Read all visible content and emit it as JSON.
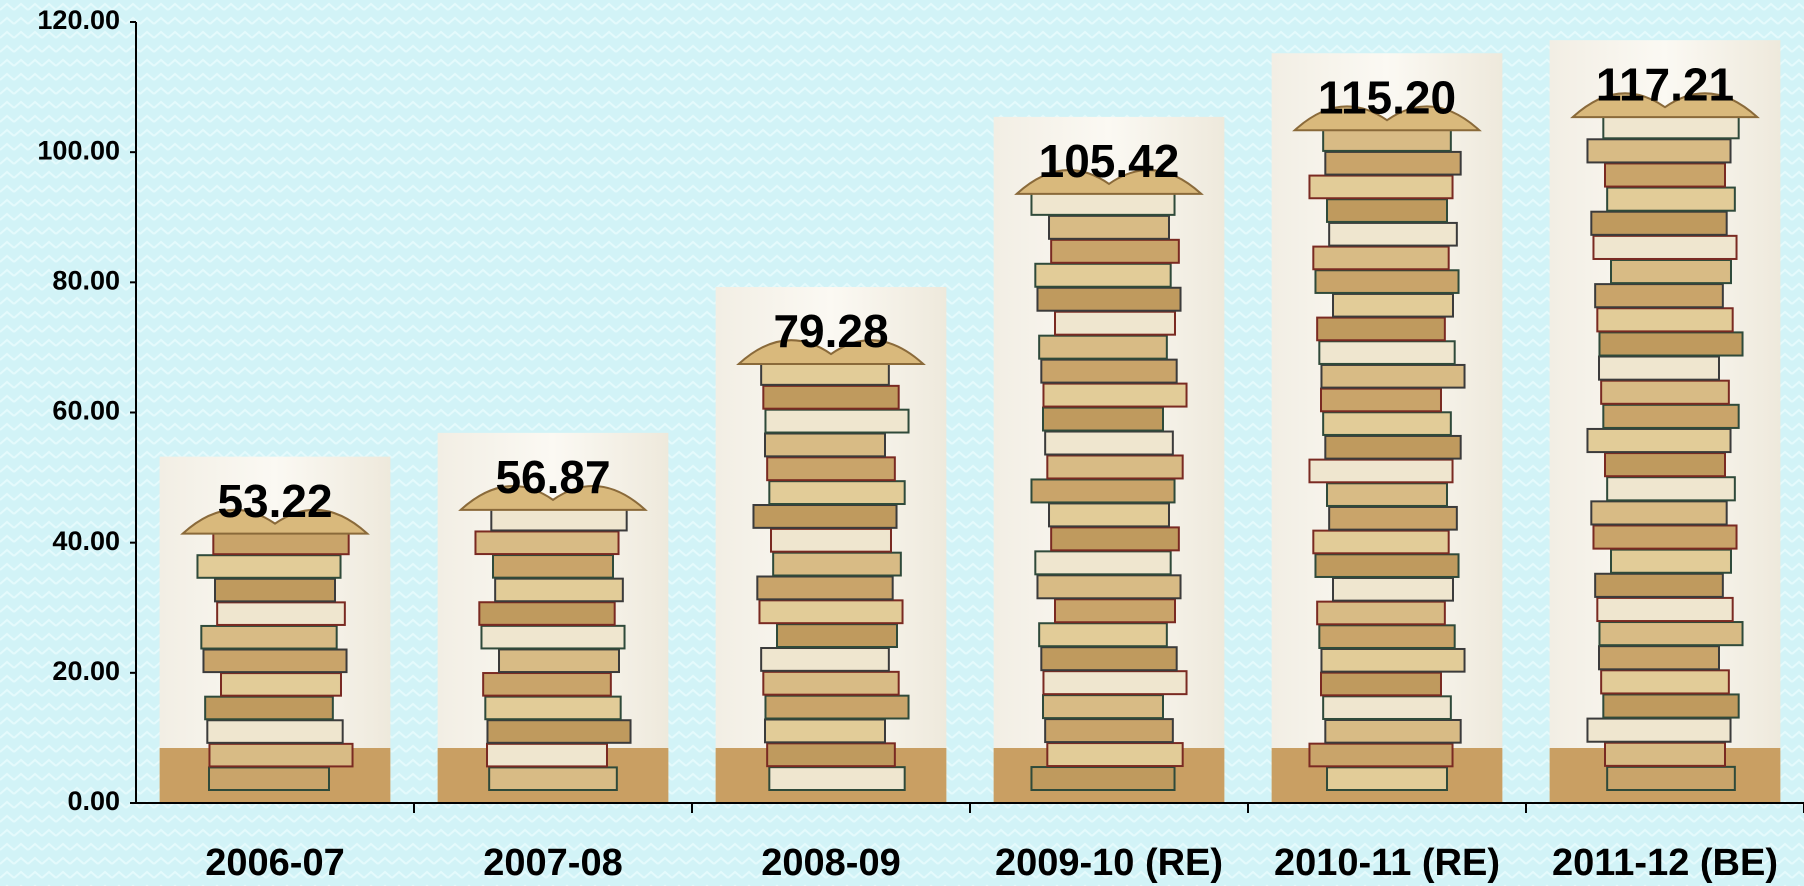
{
  "chart_data": {
    "type": "bar",
    "categories": [
      "2006-07",
      "2007-08",
      "2008-09",
      "2009-10 (RE)",
      "2010-11 (RE)",
      "2011-12 (BE)"
    ],
    "values": [
      53.22,
      56.87,
      79.28,
      105.42,
      115.2,
      117.21
    ],
    "value_labels": [
      "53.22",
      "56.87",
      "79.28",
      "105.42",
      "115.20",
      "117.21"
    ],
    "ylim": [
      0,
      120
    ],
    "yticks": [
      {
        "value": 0,
        "label": "0.00"
      },
      {
        "value": 20,
        "label": "20.00"
      },
      {
        "value": 40,
        "label": "40.00"
      },
      {
        "value": 60,
        "label": "60.00"
      },
      {
        "value": 80,
        "label": "80.00"
      },
      {
        "value": 100,
        "label": "100.00"
      },
      {
        "value": 120,
        "label": "120.00"
      }
    ],
    "grid": false,
    "color": "#f4efe2"
  }
}
